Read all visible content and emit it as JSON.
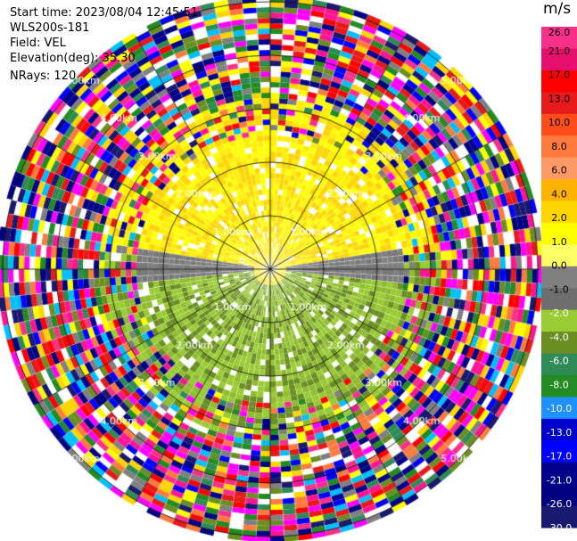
{
  "header": {
    "start_time": "Start time: 2023/08/04 12:45:51",
    "instrument": "WLS200s-181",
    "field": "Field: VEL",
    "elevation": "Elevation(deg): 35.30",
    "nrays": "NRays: 120"
  },
  "colorbar": {
    "unit": "m/s",
    "ticks": [
      "26.0",
      "21.0",
      "17.0",
      "13.0",
      "10.0",
      "8.0",
      "6.0",
      "4.0",
      "2.0",
      "1.0",
      "0.0",
      "-1.0",
      "-2.0",
      "-4.0",
      "-6.0",
      "-8.0",
      "-10.0",
      "-13.0",
      "-17.0",
      "-21.0",
      "-26.0",
      "-30.0"
    ],
    "colors": [
      "#f7318a",
      "#e60f6e",
      "#ff0000",
      "#e61a1a",
      "#ff4d1a",
      "#ff7a3d",
      "#ff9a66",
      "#ffb300",
      "#ffd500",
      "#ffff00",
      "#ffff66",
      "#808080",
      "#6e6e6e",
      "#99cc33",
      "#6b8e23",
      "#2e8b57",
      "#228b22",
      "#1e90ff",
      "#0000cd",
      "#0000ff",
      "#00008b",
      "#000080",
      "#191970"
    ]
  },
  "range_rings": {
    "labels": [
      "1.00km",
      "2.00km",
      "3.00km",
      "4.00km",
      "5.00km"
    ]
  },
  "ppi": {
    "rays": 120
  }
}
